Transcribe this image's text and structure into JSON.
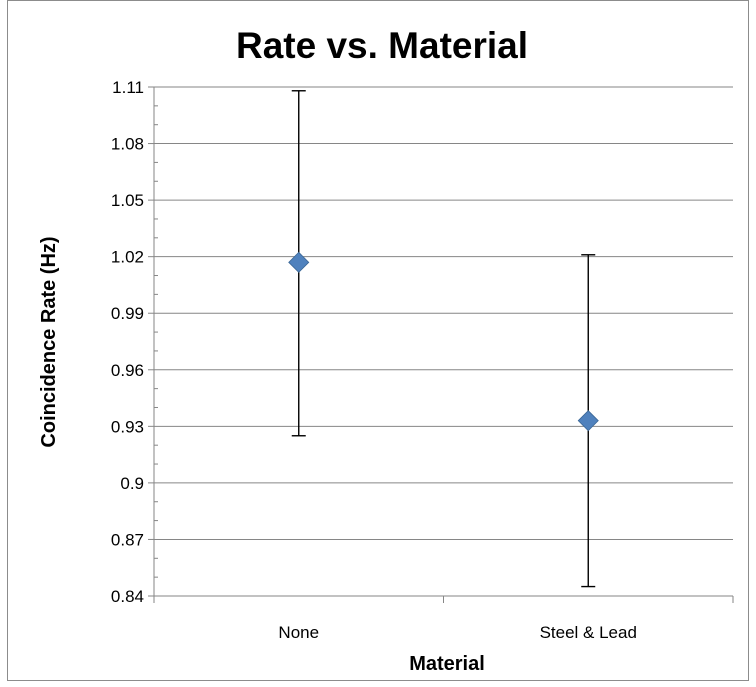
{
  "chart_data": {
    "type": "scatter",
    "title": "Rate vs. Material",
    "xlabel": "Material",
    "ylabel": "Coincidence Rate (Hz)",
    "categories": [
      "None",
      "Steel & Lead"
    ],
    "series": [
      {
        "values": [
          1.017,
          0.933
        ],
        "error_plus": [
          0.091,
          0.088
        ],
        "error_minus": [
          0.092,
          0.088
        ],
        "marker": "diamond",
        "color": "#4F81BD"
      }
    ],
    "ylim": [
      0.84,
      1.11
    ],
    "yticks": [
      0.84,
      0.87,
      0.9,
      0.93,
      0.96,
      0.99,
      1.02,
      1.05,
      1.08,
      1.11
    ],
    "ytick_labels": [
      "0.84",
      "0.87",
      "0.9",
      "0.93",
      "0.96",
      "0.99",
      "1.02",
      "1.05",
      "1.08",
      "1.11"
    ],
    "grid": true,
    "legend": "none"
  }
}
